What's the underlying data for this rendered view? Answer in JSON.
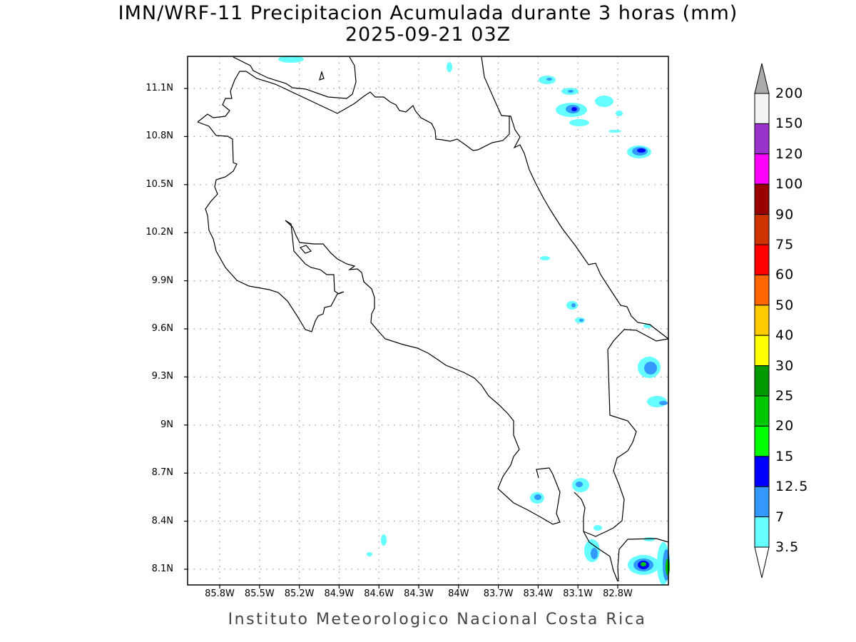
{
  "title": {
    "line1": "IMN/WRF-11 Precipitacion Acumulada durante 3 horas (mm)",
    "line2": "2025-09-21 03Z"
  },
  "map": {
    "lat_labels": [
      "11.1N",
      "10.8N",
      "10.5N",
      "10.2N",
      "9.9N",
      "9.6N",
      "9.3N",
      "9N",
      "8.7N",
      "8.4N",
      "8.1N"
    ],
    "lon_labels": [
      "85.8W",
      "85.5W",
      "85.2W",
      "84.9W",
      "84.6W",
      "84.3W",
      "84W",
      "83.7W",
      "83.4W",
      "83.1W",
      "82.8W"
    ]
  },
  "colorbar": {
    "levels": [
      "200",
      "150",
      "120",
      "100",
      "90",
      "75",
      "60",
      "50",
      "40",
      "30",
      "25",
      "20",
      "15",
      "12.5",
      "7",
      "3.5"
    ],
    "colors": [
      "#f3f3f3",
      "#9933cc",
      "#ff00ff",
      "#990000",
      "#cc3300",
      "#ff0000",
      "#ff6600",
      "#ffcc00",
      "#ffff00",
      "#009900",
      "#00c800",
      "#00ff00",
      "#0000ff",
      "#3399ff",
      "#66ffff"
    ],
    "over_color": "#aaaaaa",
    "under_color": "#ffffff"
  },
  "footer": "Instituto Meteorologico Nacional Costa Rica"
}
